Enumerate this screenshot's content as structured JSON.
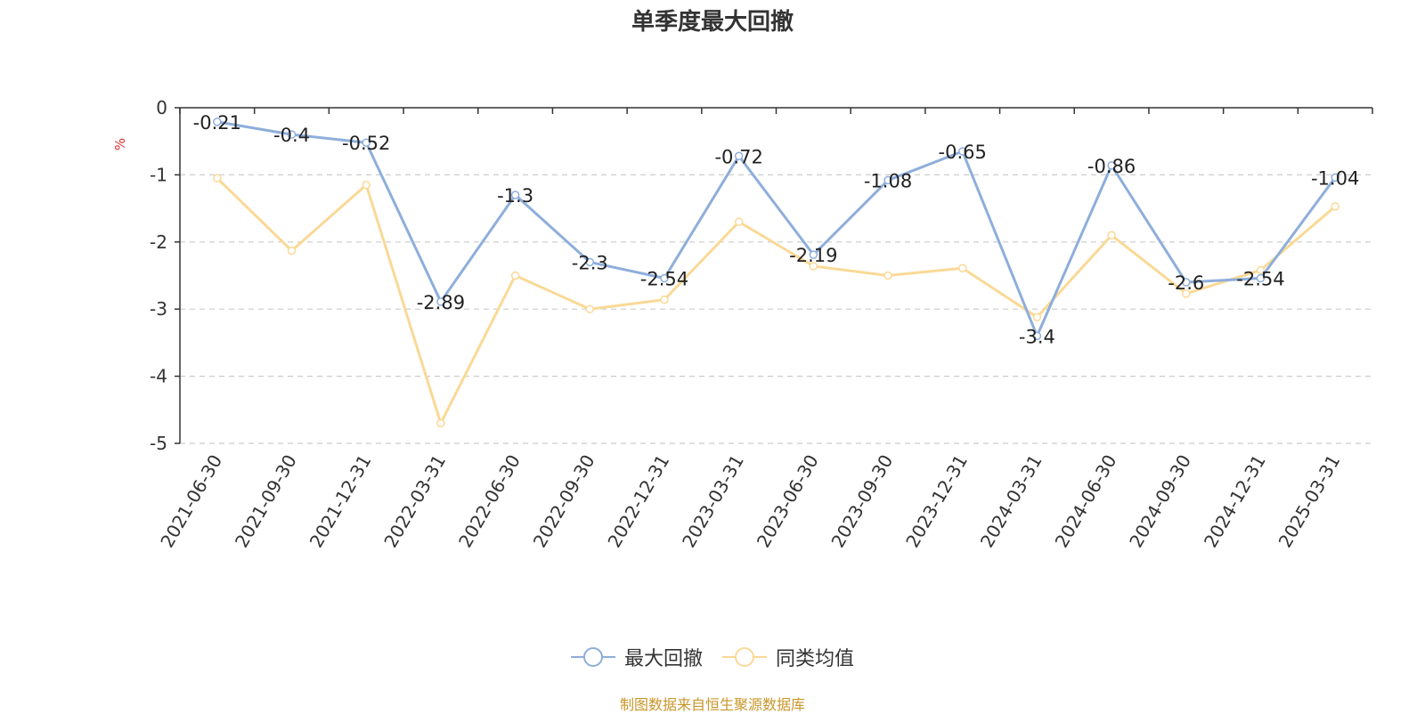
{
  "chart_data": {
    "type": "line",
    "title": "单季度最大回撤",
    "ylabel": "%",
    "ylim": [
      -5,
      0
    ],
    "yticks": [
      0,
      -1,
      -2,
      -3,
      -4,
      -5
    ],
    "grid": true,
    "legend_position": "bottom",
    "categories": [
      "2021-06-30",
      "2021-09-30",
      "2021-12-31",
      "2022-03-31",
      "2022-06-30",
      "2022-09-30",
      "2022-12-31",
      "2023-03-31",
      "2023-06-30",
      "2023-09-30",
      "2023-12-31",
      "2024-03-31",
      "2024-06-30",
      "2024-09-30",
      "2024-12-31",
      "2025-03-31"
    ],
    "series": [
      {
        "name": "最大回撤",
        "color": "#8eaedb",
        "show_labels": true,
        "values": [
          -0.21,
          -0.4,
          -0.52,
          -2.89,
          -1.3,
          -2.3,
          -2.54,
          -0.72,
          -2.19,
          -1.08,
          -0.65,
          -3.4,
          -0.86,
          -2.6,
          -2.54,
          -1.04
        ]
      },
      {
        "name": "同类均值",
        "color": "#fad996",
        "show_labels": false,
        "values": [
          -1.05,
          -2.13,
          -1.15,
          -4.7,
          -2.5,
          -3.0,
          -2.86,
          -1.7,
          -2.36,
          -2.5,
          -2.39,
          -3.12,
          -1.9,
          -2.77,
          -2.42,
          -1.47
        ]
      }
    ]
  },
  "footer": {
    "source": "制图数据来自恒生聚源数据库"
  }
}
